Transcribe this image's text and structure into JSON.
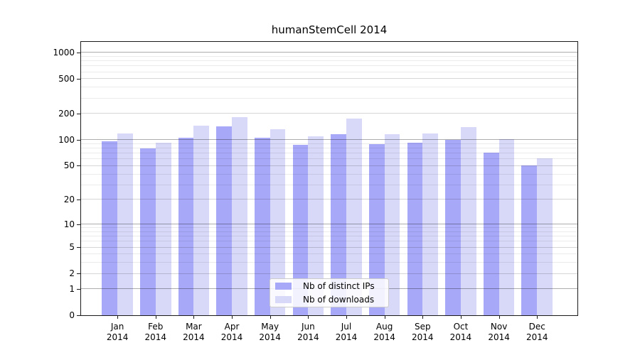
{
  "chart_data": {
    "type": "bar",
    "title": "humanStemCell 2014",
    "categories": [
      "Jan",
      "Feb",
      "Mar",
      "Apr",
      "May",
      "Jun",
      "Jul",
      "Aug",
      "Sep",
      "Oct",
      "Nov",
      "Dec"
    ],
    "year": "2014",
    "series": [
      {
        "name": "Nb of distinct IPs",
        "color": "#a8a8f8",
        "values": [
          96,
          79,
          106,
          142,
          106,
          88,
          115,
          89,
          93,
          99,
          71,
          50
        ]
      },
      {
        "name": "Nb of downloads",
        "color": "#d8d8f8",
        "values": [
          118,
          93,
          144,
          181,
          133,
          110,
          176,
          115,
          118,
          141,
          101,
          61
        ]
      }
    ],
    "xlabel": "",
    "ylabel": "",
    "yscale": "log10(1+x)",
    "yticks": [
      0,
      1,
      2,
      5,
      10,
      20,
      50,
      100,
      200,
      500,
      1000
    ],
    "ylim": [
      0,
      1337
    ],
    "grid": true,
    "legend_position": "lower center",
    "colors": {
      "grid_decade": "#adadad",
      "grid_labeled": "#d6d6d6",
      "grid_minor": "#ebebeb",
      "frame": "#1a1a1a",
      "background": "#ffffff"
    }
  }
}
